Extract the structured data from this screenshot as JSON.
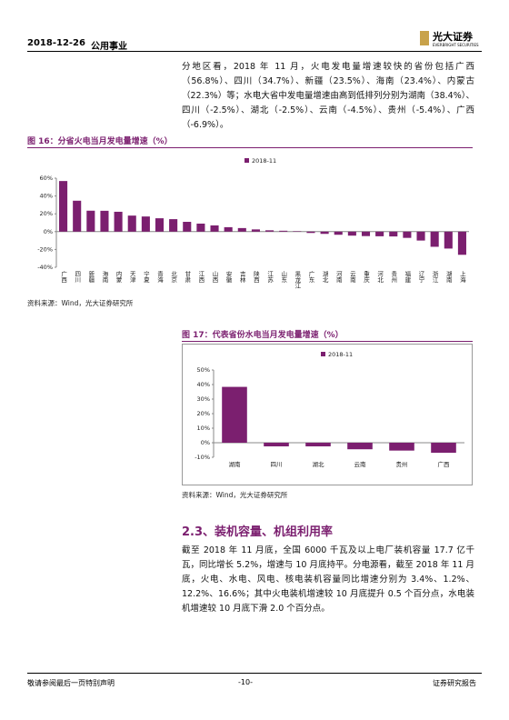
{
  "header": {
    "date": "2018-12-26",
    "sector": "公用事业",
    "logo": "光大证券",
    "logo_en": "EVERBRIGHT SECURITIES"
  },
  "paragraphs": [
    "分地区看，2018 年 11 月，火电发电量增速较快的省份包括广西（56.8%）、四川（34.7%）、新疆（23.5%）、海南（23.4%）、内蒙古（22.3%）等；水电大省中发电量增速由高到低排列分别为湖南（38.4%）、四川（-2.5%）、湖北（-2.5%）、云南（-4.5%）、贵州（-5.4%）、广西（-6.9%）。",
    "截至 2018 年 11 月底，全国 6000 千瓦及以上电厂装机容量 17.7 亿千瓦，同比增长 5.2%，增速与 10 月底持平。分电源看，截至 2018 年 11 月底，火电、水电、风电、核电装机容量同比增速分别为 3.4%、1.2%、12.2%、16.6%；其中火电装机增速较 10 月底提升 0.5 个百分点，水电装机增速较 10 月底下滑 2.0 个百分点。"
  ],
  "section_title": "2.3、装机容量、机组利用率",
  "sources": [
    "资料来源：Wind，光大证券研究所",
    "资料来源：Wind，光大证券研究所"
  ],
  "footer": {
    "left": "敬请参阅最后一页特别声明",
    "page": "-10-",
    "right": "证券研究报告"
  },
  "chart_data": [
    {
      "type": "bar",
      "title": "图 16：分省火电当月发电量增速（%）",
      "legend": "top",
      "categories": [
        "广西",
        "四川",
        "新疆",
        "海南",
        "内蒙",
        "天津",
        "宁夏",
        "青海",
        "北京",
        "甘肃",
        "江西",
        "山西",
        "安徽",
        "吉林",
        "陕西",
        "江苏",
        "山东",
        "黑龙江",
        "广东",
        "湖北",
        "河南",
        "云南",
        "重庆",
        "河北",
        "贵州",
        "福建",
        "辽宁",
        "浙江",
        "湖南",
        "上海"
      ],
      "series": [
        {
          "name": "2018-11",
          "color": "#7b1f6f",
          "values": [
            56.8,
            34.7,
            23.5,
            23.4,
            22.3,
            18,
            17,
            15,
            14,
            11,
            9,
            7,
            5,
            4,
            2.5,
            1.5,
            1,
            0.5,
            -1.5,
            -2.5,
            -3.5,
            -4.5,
            -5,
            -5.2,
            -5.4,
            -7,
            -10,
            -17,
            -19,
            -26
          ]
        }
      ],
      "ylim": [
        -40,
        60
      ],
      "yticks": [
        {
          "value": -40,
          "label": "-40%"
        },
        {
          "value": -20,
          "label": "-20%"
        },
        {
          "value": 0,
          "label": "0%"
        },
        {
          "value": 20,
          "label": "20%"
        },
        {
          "value": 40,
          "label": "40%"
        },
        {
          "value": 60,
          "label": "60%"
        }
      ],
      "grid": false
    },
    {
      "type": "bar",
      "title": "图 17：代表省份水电当月发电量增速（%）",
      "legend": "top",
      "categories": [
        "湖南",
        "四川",
        "湖北",
        "云南",
        "贵州",
        "广西"
      ],
      "series": [
        {
          "name": "2018-11",
          "color": "#7b1f6f",
          "values": [
            38.4,
            -2.5,
            -2.5,
            -4.5,
            -5.4,
            -6.9
          ]
        }
      ],
      "ylim": [
        -10,
        50
      ],
      "yticks": [
        {
          "value": -10,
          "label": "-10%"
        },
        {
          "value": 0,
          "label": "0%"
        },
        {
          "value": 10,
          "label": "10%"
        },
        {
          "value": 20,
          "label": "20%"
        },
        {
          "value": 30,
          "label": "30%"
        },
        {
          "value": 40,
          "label": "40%"
        },
        {
          "value": 50,
          "label": "50%"
        }
      ],
      "grid": false
    }
  ]
}
